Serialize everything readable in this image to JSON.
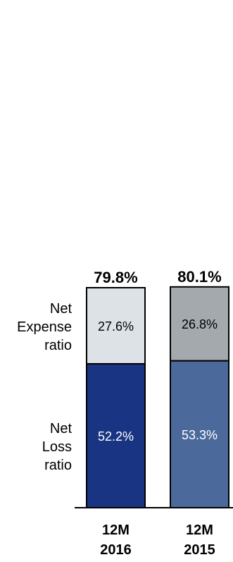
{
  "chart_data": {
    "type": "bar",
    "stacked": true,
    "categories": [
      "12M\n2016",
      "12M\n2015"
    ],
    "series": [
      {
        "name": "Net Loss ratio",
        "values": [
          52.2,
          53.3
        ],
        "labels": [
          "52.2%",
          "53.3%"
        ]
      },
      {
        "name": "Net Expense ratio",
        "values": [
          27.6,
          26.8
        ],
        "labels": [
          "27.6%",
          "26.8%"
        ]
      }
    ],
    "totals": [
      79.8,
      80.1
    ],
    "total_labels": [
      "79.8%",
      "80.1%"
    ],
    "row_labels": {
      "expense": "Net\nExpense\nratio",
      "loss": "Net\nLoss\nratio"
    },
    "x_labels": [
      [
        "12M",
        "2016"
      ],
      [
        "12M",
        "2015"
      ]
    ],
    "colors": {
      "loss": [
        "#1a3484",
        "#4b6a9b"
      ],
      "expense": [
        "#dde2e6",
        "#a4a9ad"
      ],
      "loss_text": "#ffffff",
      "expense_text": "#000000",
      "border": "#000000"
    },
    "ylim": [
      0,
      85
    ],
    "grid": false,
    "legend": "none"
  }
}
